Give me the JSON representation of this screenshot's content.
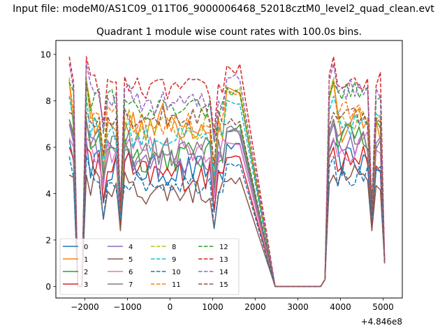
{
  "chart_data": {
    "type": "line",
    "suptitle": "Input file: modeM0/AS1C09_011T06_9000006468_52018cztM0_level2_quad_clean.evt",
    "title": "Quadrant 1 module wise count rates with 100.0s bins.",
    "xlabel": "",
    "ylabel": "",
    "offset_text": "+4.846e8",
    "xlim": [
      -2680,
      5450
    ],
    "ylim": [
      -0.5,
      10.6
    ],
    "xticks": [
      -2000,
      -1000,
      0,
      1000,
      2000,
      3000,
      4000,
      5000
    ],
    "xtick_labels": [
      "−2000",
      "−1000",
      "0",
      "1000",
      "2000",
      "3000",
      "4000",
      "5000"
    ],
    "yticks": [
      0,
      2,
      4,
      6,
      8,
      10
    ],
    "ytick_labels": [
      "0",
      "2",
      "4",
      "6",
      "8",
      "10"
    ],
    "legend_location": "lower-left",
    "segments": [
      {
        "start": -2366,
        "step": 100,
        "count": 3
      },
      {
        "start": -2065,
        "step": 100,
        "count": 38
      },
      {
        "start": 2535,
        "step": 100,
        "count": 26
      }
    ],
    "zero_gaps": [
      [
        -2166,
        -2065
      ]
    ],
    "gap_value": 0,
    "series": [
      {
        "name": "0",
        "color": "#1f77b4",
        "dash": "solid",
        "base": 5.0,
        "outer": 5.4,
        "edge": 6.3,
        "noise": 0.7,
        "dips": {
          "1": 2.6,
          "9": 2.8
        }
      },
      {
        "name": "1",
        "color": "#ff7f0e",
        "dash": "solid",
        "base": 7.1,
        "outer": 6.8,
        "edge": 8.9,
        "noise": 0.9,
        "dips": {
          "1": 3.0,
          "9": 3.4
        }
      },
      {
        "name": "2",
        "color": "#2ca02c",
        "dash": "solid",
        "base": 5.6,
        "outer": 6.6,
        "edge": 7.2,
        "noise": 0.7,
        "dips": {
          "1": 2.8,
          "9": 3.0
        }
      },
      {
        "name": "3",
        "color": "#d62728",
        "dash": "solid",
        "base": 4.8,
        "outer": 5.5,
        "edge": 6.0,
        "noise": 0.7,
        "dips": {
          "1": 2.4,
          "9": 2.6
        }
      },
      {
        "name": "4",
        "color": "#9467bd",
        "dash": "solid",
        "base": 5.3,
        "outer": 6.2,
        "edge": 7.0,
        "noise": 0.6,
        "dips": {
          "1": 2.6,
          "9": 2.9
        }
      },
      {
        "name": "5",
        "color": "#8c564b",
        "dash": "solid",
        "base": 4.1,
        "outer": 4.7,
        "edge": 4.8,
        "noise": 0.6,
        "dips": {
          "1": 2.2,
          "9": 2.4
        }
      },
      {
        "name": "6",
        "color": "#e377c2",
        "dash": "solid",
        "base": 6.0,
        "outer": 6.0,
        "edge": 6.4,
        "noise": 0.7,
        "dips": {
          "1": 2.8,
          "9": 3.2
        }
      },
      {
        "name": "7",
        "color": "#7f7f7f",
        "dash": "solid",
        "base": 5.8,
        "outer": 6.4,
        "edge": 7.2,
        "noise": 0.7,
        "dips": {
          "1": 2.7,
          "9": 3.0
        }
      },
      {
        "name": "8",
        "color": "#bcbd22",
        "dash": "dashed",
        "base": 6.8,
        "outer": 7.3,
        "edge": 9.0,
        "noise": 0.6,
        "dips": {
          "1": 2.7,
          "9": 3.3
        }
      },
      {
        "name": "9",
        "color": "#17becf",
        "dash": "dashed",
        "base": 6.4,
        "outer": 7.0,
        "edge": 8.2,
        "noise": 0.6,
        "dips": {
          "1": 2.6,
          "9": 3.0
        }
      },
      {
        "name": "10",
        "color": "#1f77b4",
        "dash": "dashed",
        "base": 4.5,
        "outer": 4.7,
        "edge": 5.6,
        "noise": 0.5,
        "dips": {
          "1": 2.4,
          "9": 2.9
        }
      },
      {
        "name": "11",
        "color": "#ff7f0e",
        "dash": "dashed",
        "base": 7.0,
        "outer": 7.5,
        "edge": 8.8,
        "noise": 0.5,
        "dips": {
          "1": 2.9,
          "9": 3.2
        }
      },
      {
        "name": "12",
        "color": "#2ca02c",
        "dash": "dashed",
        "base": 7.6,
        "outer": 8.4,
        "edge": 8.8,
        "noise": 0.5,
        "dips": {
          "1": 2.9,
          "9": 3.4
        }
      },
      {
        "name": "13",
        "color": "#d62728",
        "dash": "dashed",
        "base": 8.5,
        "outer": 8.8,
        "edge": 9.9,
        "noise": 0.5,
        "dips": {
          "1": 3.2,
          "9": 3.4
        }
      },
      {
        "name": "14",
        "color": "#9467bd",
        "dash": "dashed",
        "base": 7.9,
        "outer": 8.5,
        "edge": 9.6,
        "noise": 0.5,
        "dips": {
          "1": 3.1,
          "9": 3.3
        }
      },
      {
        "name": "15",
        "color": "#8c564b",
        "dash": "dashed",
        "base": 7.3,
        "outer": 7.4,
        "edge": 7.5,
        "noise": 0.5,
        "dips": {
          "1": 3.0,
          "9": 3.2
        }
      }
    ]
  }
}
